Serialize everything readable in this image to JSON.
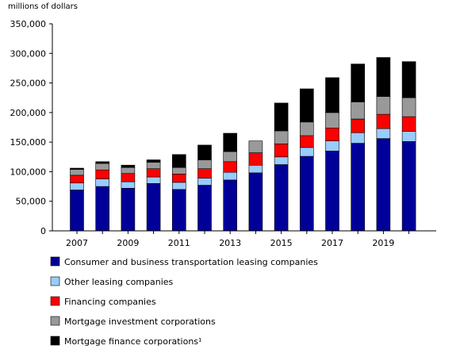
{
  "chart_data": {
    "type": "bar",
    "stacked": true,
    "unit_label": "millions of dollars",
    "title": "",
    "xlabel": "",
    "ylabel": "",
    "ylim": [
      0,
      350000
    ],
    "y_ticks": [
      0,
      50000,
      100000,
      150000,
      200000,
      250000,
      300000,
      350000
    ],
    "y_tick_labels": [
      "0",
      "50,000",
      "100,000",
      "150,000",
      "200,000",
      "250,000",
      "300,000",
      "350,000"
    ],
    "categories": [
      "2007",
      "2008",
      "2009",
      "2010",
      "2011",
      "2012",
      "2013",
      "2014",
      "2015",
      "2016",
      "2017",
      "2018",
      "2019",
      "2020"
    ],
    "x_tick_labels": [
      "2007",
      "",
      "2009",
      "",
      "2011",
      "",
      "2013",
      "",
      "2015",
      "",
      "2017",
      "",
      "2019",
      ""
    ],
    "grid": false,
    "legend_position": "bottom",
    "series": [
      {
        "name": "Consumer and business transportation leasing companies",
        "color": "#000099",
        "values": [
          69000,
          75000,
          72000,
          80000,
          70000,
          77000,
          86000,
          98000,
          112000,
          126000,
          135000,
          148000,
          156000,
          151000
        ]
      },
      {
        "name": "Other leasing companies",
        "color": "#99ccff",
        "values": [
          12000,
          13000,
          11000,
          11000,
          12000,
          12000,
          13000,
          13000,
          13000,
          15000,
          17000,
          18000,
          17000,
          17000
        ]
      },
      {
        "name": "Financing companies",
        "color": "#ff0000",
        "values": [
          13000,
          15000,
          14000,
          14000,
          14000,
          16000,
          18000,
          21000,
          22000,
          20000,
          22000,
          23000,
          24000,
          25000
        ]
      },
      {
        "name": "Mortgage investment corporations",
        "color": "#999999",
        "values": [
          10000,
          11000,
          10000,
          11000,
          11000,
          15000,
          17000,
          20000,
          22000,
          23000,
          26000,
          29000,
          30000,
          32000
        ]
      },
      {
        "name": "Mortgage finance corporations¹",
        "color": "#000000",
        "values": [
          2000,
          3000,
          4000,
          4000,
          22000,
          25000,
          31000,
          0,
          47000,
          56000,
          59000,
          64000,
          66000,
          61000
        ]
      }
    ]
  }
}
